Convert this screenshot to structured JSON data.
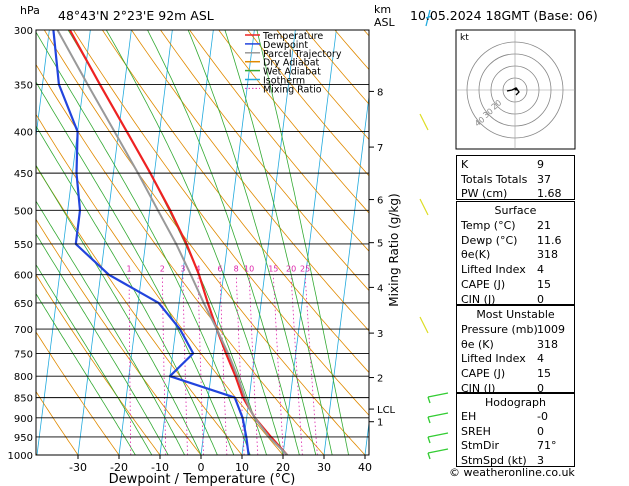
{
  "header": {
    "hpa_label": "hPa",
    "location": "48°43'N  2°23'E  92m  ASL",
    "km_label": "km",
    "asl_label": "ASL",
    "datetime": "10.05.2024  18GMT  (Base: 06)"
  },
  "axes": {
    "x_title": "Dewpoint / Temperature (°C)",
    "y_right_title": "Mixing Ratio (g/kg)",
    "pressure_ticks": [
      300,
      350,
      400,
      450,
      500,
      550,
      600,
      650,
      700,
      750,
      800,
      850,
      900,
      950,
      1000
    ],
    "temp_ticks": [
      -30,
      -20,
      -10,
      0,
      10,
      20,
      30,
      40
    ],
    "km_ticks": [
      {
        "label": "8",
        "p": 357
      },
      {
        "label": "7",
        "p": 418
      },
      {
        "label": "6",
        "p": 485
      },
      {
        "label": "5",
        "p": 548
      },
      {
        "label": "4",
        "p": 622
      },
      {
        "label": "3",
        "p": 708
      },
      {
        "label": "2",
        "p": 803
      },
      {
        "label": "1",
        "p": 910
      },
      {
        "label": "LCL",
        "p": 878
      }
    ],
    "mixing_ratio_labels": [
      "1",
      "2",
      "3",
      "4",
      "6",
      "8",
      "10",
      "15",
      "20",
      "25"
    ]
  },
  "legend": [
    {
      "label": "Temperature",
      "color": "#ee2222",
      "style": "solid"
    },
    {
      "label": "Dewpoint",
      "color": "#2244dd",
      "style": "solid"
    },
    {
      "label": "Parcel Trajectory",
      "color": "#999999",
      "style": "solid"
    },
    {
      "label": "Dry Adiabat",
      "color": "#e08a00",
      "style": "solid"
    },
    {
      "label": "Wet Adiabat",
      "color": "#33aa33",
      "style": "solid"
    },
    {
      "label": "Isotherm",
      "color": "#22aadd",
      "style": "solid"
    },
    {
      "label": "Mixing Ratio",
      "color": "#dd22aa",
      "style": "dotted"
    }
  ],
  "chart_data": {
    "type": "line",
    "xlabel": "Dewpoint / Temperature (°C)",
    "ylabel": "hPa",
    "xlim": [
      -35,
      40
    ],
    "ylim": [
      1000,
      300
    ],
    "y_scale": "log",
    "skew": true,
    "series": [
      {
        "name": "Temperature",
        "color": "#ee2222",
        "points": [
          [
            1000,
            21
          ],
          [
            950,
            16.5
          ],
          [
            900,
            12
          ],
          [
            850,
            8.5
          ],
          [
            800,
            6
          ],
          [
            750,
            3
          ],
          [
            700,
            0
          ],
          [
            650,
            -3
          ],
          [
            600,
            -6
          ],
          [
            550,
            -10
          ],
          [
            500,
            -15
          ],
          [
            450,
            -21
          ],
          [
            400,
            -28
          ],
          [
            350,
            -36
          ],
          [
            300,
            -45
          ]
        ]
      },
      {
        "name": "Dewpoint",
        "color": "#2244dd",
        "points": [
          [
            1000,
            11.6
          ],
          [
            950,
            10.5
          ],
          [
            900,
            9
          ],
          [
            850,
            6.5
          ],
          [
            800,
            -10
          ],
          [
            750,
            -5
          ],
          [
            700,
            -9
          ],
          [
            650,
            -15
          ],
          [
            600,
            -28
          ],
          [
            550,
            -37
          ],
          [
            500,
            -37
          ],
          [
            450,
            -39
          ],
          [
            400,
            -40
          ],
          [
            350,
            -46
          ],
          [
            300,
            -49
          ]
        ]
      },
      {
        "name": "Parcel Trajectory",
        "color": "#999999",
        "points": [
          [
            1000,
            21
          ],
          [
            950,
            16
          ],
          [
            900,
            12
          ],
          [
            878,
            10.5
          ],
          [
            850,
            9
          ],
          [
            800,
            6.5
          ],
          [
            750,
            3.5
          ],
          [
            700,
            0
          ],
          [
            650,
            -4
          ],
          [
            600,
            -8
          ],
          [
            550,
            -12.5
          ],
          [
            500,
            -18
          ],
          [
            450,
            -24
          ],
          [
            400,
            -31
          ],
          [
            350,
            -39
          ],
          [
            300,
            -48
          ]
        ]
      }
    ]
  },
  "hodograph": {
    "unit_label": "kt",
    "ring_labels": [
      "10",
      "20",
      "30",
      "40"
    ]
  },
  "indices": {
    "rows": [
      {
        "k": "K",
        "v": "9"
      },
      {
        "k": "Totals Totals",
        "v": "37"
      },
      {
        "k": "PW (cm)",
        "v": "1.68"
      }
    ],
    "surface": {
      "title": "Surface",
      "rows": [
        {
          "k": "Temp (°C)",
          "v": "21"
        },
        {
          "k": "Dewp (°C)",
          "v": "11.6"
        },
        {
          "k": "θe(K)",
          "v": "318"
        },
        {
          "k": "Lifted Index",
          "v": "4"
        },
        {
          "k": "CAPE (J)",
          "v": "15"
        },
        {
          "k": "CIN (J)",
          "v": "0"
        }
      ]
    },
    "most_unstable": {
      "title": "Most Unstable",
      "rows": [
        {
          "k": "Pressure (mb)",
          "v": "1009"
        },
        {
          "k": "θe (K)",
          "v": "318"
        },
        {
          "k": "Lifted Index",
          "v": "4"
        },
        {
          "k": "CAPE (J)",
          "v": "15"
        },
        {
          "k": "CIN (J)",
          "v": "0"
        }
      ]
    },
    "hodograph_table": {
      "title": "Hodograph",
      "rows": [
        {
          "k": "EH",
          "v": "-0"
        },
        {
          "k": "SREH",
          "v": "0"
        },
        {
          "k": "StmDir",
          "v": "71°"
        },
        {
          "k": "StmSpd (kt)",
          "v": "3"
        }
      ]
    }
  },
  "footer": {
    "credit": "© weatheronline.co.uk"
  }
}
